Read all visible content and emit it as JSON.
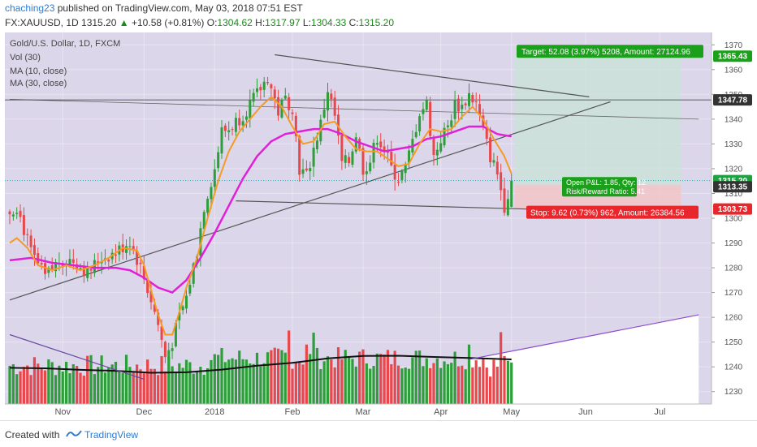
{
  "header": {
    "author": "chaching23",
    "published_text": "published on TradingView.com, May 03, 2018 07:51 EST",
    "symbol_line": "FX:XAUUSD, 1D",
    "last": "1315.20",
    "change": "+10.58 (+0.81%)",
    "o_label": "O:",
    "o": "1304.62",
    "h_label": "H:",
    "h": "1317.97",
    "l_label": "L:",
    "l": "1304.33",
    "c_label": "C:",
    "c": "1315.20"
  },
  "legend": {
    "title": "Gold/U.S. Dollar, 1D, FXCM",
    "vol": "Vol (30)",
    "ma10": "MA (10, close)",
    "ma30": "MA (30, close)"
  },
  "annotations": {
    "target": "Target: 52.08 (3.97%) 5208, Amount: 27124.96",
    "stop": "Stop: 9.62 (0.73%) 962, Amount: 26384.56",
    "pnl_line1": "Open P&L: 1.85, Qty: 12",
    "pnl_line2": "Risk/Reward Ratio: 5.41"
  },
  "price_labels": {
    "target": "1365.43",
    "hline": "1347.78",
    "last": "1315.20",
    "entry": "1313.35",
    "stop": "1303.73"
  },
  "footer": {
    "created_with": "Created with",
    "brand": "TradingView"
  },
  "colors": {
    "bull": "#2e9e3a",
    "bear": "#e8474b",
    "ma10": "#f59b23",
    "ma30": "#e020d8",
    "target_label": "#1aa01a",
    "stop_label": "#e8262b",
    "last_label": "#20a040",
    "dark_label": "#333333",
    "trend": "#555555"
  },
  "chart_data": {
    "type": "candlestick",
    "symbol": "FX:XAUUSD",
    "timeframe": "1D",
    "y_ticks": [
      1230,
      1240,
      1250,
      1260,
      1270,
      1280,
      1290,
      1300,
      1310,
      1320,
      1330,
      1340,
      1350,
      1360,
      1370
    ],
    "ylim": [
      1225,
      1375
    ],
    "x_tick_labels": [
      "Nov",
      "Dec",
      "2018",
      "Feb",
      "Mar",
      "Apr",
      "May",
      "Jun",
      "Jul"
    ],
    "x_ticks_index": [
      15,
      38,
      58,
      80,
      100,
      122,
      142,
      163,
      184
    ],
    "control_points": [
      [
        0,
        1303
      ],
      [
        2,
        1305
      ],
      [
        6,
        1286
      ],
      [
        10,
        1276
      ],
      [
        14,
        1283
      ],
      [
        18,
        1283
      ],
      [
        22,
        1278
      ],
      [
        26,
        1284
      ],
      [
        30,
        1286
      ],
      [
        34,
        1291
      ],
      [
        37,
        1280
      ],
      [
        40,
        1267
      ],
      [
        42,
        1257
      ],
      [
        44,
        1244
      ],
      [
        46,
        1250
      ],
      [
        48,
        1260
      ],
      [
        50,
        1268
      ],
      [
        53,
        1287
      ],
      [
        55,
        1305
      ],
      [
        58,
        1320
      ],
      [
        60,
        1335
      ],
      [
        62,
        1336
      ],
      [
        66,
        1342
      ],
      [
        70,
        1350
      ],
      [
        73,
        1357
      ],
      [
        76,
        1343
      ],
      [
        78,
        1348
      ],
      [
        80,
        1345
      ],
      [
        82,
        1320
      ],
      [
        84,
        1317
      ],
      [
        86,
        1328
      ],
      [
        88,
        1338
      ],
      [
        90,
        1352
      ],
      [
        92,
        1341
      ],
      [
        94,
        1322
      ],
      [
        96,
        1323
      ],
      [
        98,
        1334
      ],
      [
        100,
        1320
      ],
      [
        102,
        1323
      ],
      [
        104,
        1333
      ],
      [
        106,
        1328
      ],
      [
        108,
        1320
      ],
      [
        110,
        1316
      ],
      [
        112,
        1320
      ],
      [
        114,
        1331
      ],
      [
        116,
        1343
      ],
      [
        118,
        1346
      ],
      [
        120,
        1325
      ],
      [
        122,
        1332
      ],
      [
        124,
        1337
      ],
      [
        126,
        1346
      ],
      [
        128,
        1345
      ],
      [
        130,
        1350
      ],
      [
        132,
        1346
      ],
      [
        134,
        1335
      ],
      [
        136,
        1325
      ],
      [
        138,
        1318
      ],
      [
        140,
        1305
      ],
      [
        142,
        1315
      ]
    ],
    "ma10": [
      [
        0,
        1290
      ],
      [
        2,
        1292
      ],
      [
        5,
        1288
      ],
      [
        8,
        1281
      ],
      [
        12,
        1279
      ],
      [
        16,
        1281
      ],
      [
        20,
        1279
      ],
      [
        24,
        1281
      ],
      [
        28,
        1284
      ],
      [
        32,
        1288
      ],
      [
        36,
        1287
      ],
      [
        38,
        1281
      ],
      [
        40,
        1271
      ],
      [
        42,
        1261
      ],
      [
        44,
        1253
      ],
      [
        46,
        1253
      ],
      [
        48,
        1262
      ],
      [
        50,
        1272
      ],
      [
        53,
        1284
      ],
      [
        56,
        1300
      ],
      [
        59,
        1315
      ],
      [
        62,
        1327
      ],
      [
        65,
        1335
      ],
      [
        68,
        1340
      ],
      [
        71,
        1345
      ],
      [
        74,
        1349
      ],
      [
        77,
        1345
      ],
      [
        80,
        1337
      ],
      [
        83,
        1330
      ],
      [
        86,
        1331
      ],
      [
        89,
        1338
      ],
      [
        92,
        1339
      ],
      [
        95,
        1333
      ],
      [
        98,
        1328
      ],
      [
        101,
        1327
      ],
      [
        104,
        1327
      ],
      [
        107,
        1324
      ],
      [
        110,
        1321
      ],
      [
        113,
        1322
      ],
      [
        116,
        1330
      ],
      [
        119,
        1336
      ],
      [
        122,
        1335
      ],
      [
        125,
        1336
      ],
      [
        128,
        1341
      ],
      [
        131,
        1345
      ],
      [
        134,
        1340
      ],
      [
        137,
        1332
      ],
      [
        140,
        1325
      ],
      [
        142,
        1318
      ]
    ],
    "ma30": [
      [
        0,
        1283
      ],
      [
        6,
        1284
      ],
      [
        12,
        1282
      ],
      [
        18,
        1281
      ],
      [
        24,
        1280
      ],
      [
        30,
        1280
      ],
      [
        34,
        1279
      ],
      [
        38,
        1276
      ],
      [
        42,
        1272
      ],
      [
        46,
        1270
      ],
      [
        50,
        1275
      ],
      [
        54,
        1284
      ],
      [
        58,
        1294
      ],
      [
        62,
        1305
      ],
      [
        66,
        1316
      ],
      [
        70,
        1325
      ],
      [
        74,
        1331
      ],
      [
        78,
        1334
      ],
      [
        82,
        1335
      ],
      [
        86,
        1336
      ],
      [
        90,
        1336
      ],
      [
        94,
        1334
      ],
      [
        98,
        1331
      ],
      [
        102,
        1329
      ],
      [
        106,
        1327
      ],
      [
        110,
        1328
      ],
      [
        114,
        1329
      ],
      [
        118,
        1332
      ],
      [
        122,
        1333
      ],
      [
        126,
        1335
      ],
      [
        130,
        1337
      ],
      [
        134,
        1337
      ],
      [
        138,
        1334
      ],
      [
        142,
        1333
      ]
    ],
    "vol_ma": [
      [
        0,
        1239.6
      ],
      [
        10,
        1239.4
      ],
      [
        20,
        1238.8
      ],
      [
        30,
        1238.4
      ],
      [
        40,
        1237.6
      ],
      [
        50,
        1237.8
      ],
      [
        60,
        1238.9
      ],
      [
        70,
        1240.5
      ],
      [
        80,
        1241.6
      ],
      [
        90,
        1243.4
      ],
      [
        100,
        1244.4
      ],
      [
        110,
        1244.5
      ],
      [
        120,
        1244
      ],
      [
        130,
        1243.6
      ],
      [
        142,
        1243
      ]
    ],
    "trendlines": [
      {
        "name": "upper-falling",
        "from": [
          75,
          1366
        ],
        "to": [
          164,
          1349
        ]
      },
      {
        "name": "lower-falling",
        "from": [
          64,
          1307
        ],
        "to": [
          164,
          1303
        ]
      },
      {
        "name": "rising-long",
        "from": [
          0,
          1267
        ],
        "to": [
          170,
          1347
        ]
      },
      {
        "name": "long-falling",
        "from": [
          0,
          1348
        ],
        "to": [
          195,
          1340
        ]
      },
      {
        "name": "vol-rising-purple",
        "from": [
          130,
          1243
        ],
        "to": [
          195,
          1261
        ]
      },
      {
        "name": "vol-falling-left",
        "from": [
          0,
          1253
        ],
        "to": [
          38,
          1235
        ]
      }
    ],
    "position": {
      "entry": 1313.35,
      "target": 1365.43,
      "stop": 1303.73,
      "last": 1315.2,
      "hline": 1347.78,
      "start_index": 143,
      "end_index": 190
    }
  }
}
